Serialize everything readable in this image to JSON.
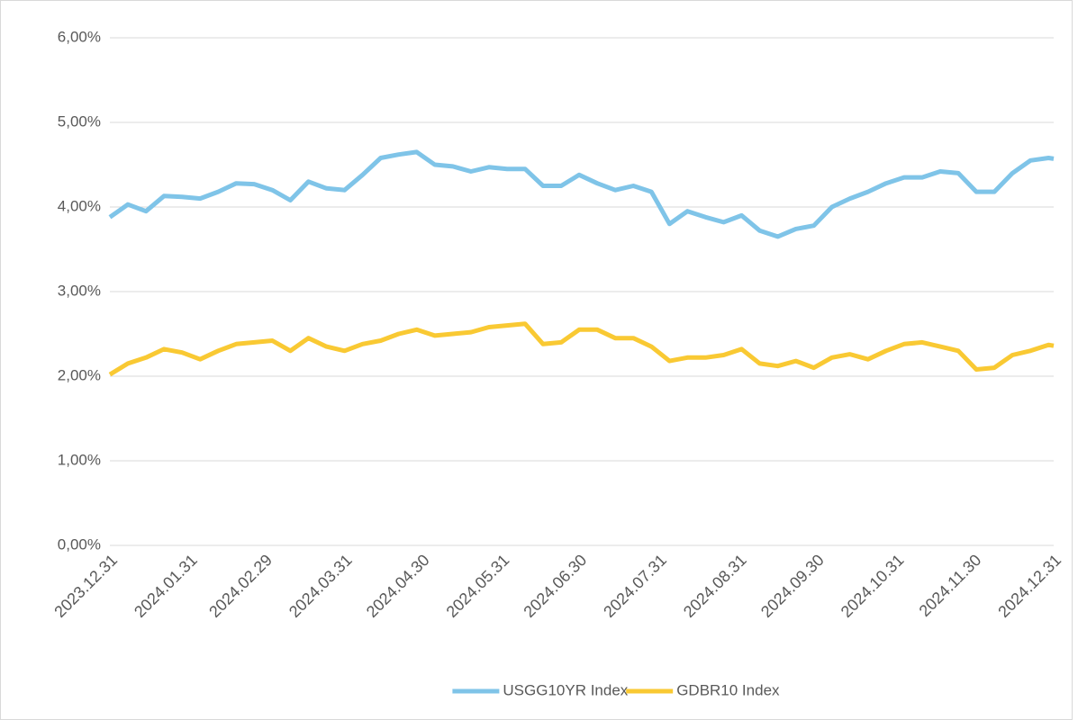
{
  "chart_data": {
    "type": "line",
    "x": [
      "2023.12.31",
      "2024.01.07",
      "2024.01.14",
      "2024.01.21",
      "2024.01.28",
      "2024.02.04",
      "2024.02.11",
      "2024.02.18",
      "2024.02.25",
      "2024.03.03",
      "2024.03.10",
      "2024.03.17",
      "2024.03.24",
      "2024.03.31",
      "2024.04.07",
      "2024.04.14",
      "2024.04.21",
      "2024.04.28",
      "2024.05.05",
      "2024.05.12",
      "2024.05.19",
      "2024.05.26",
      "2024.06.02",
      "2024.06.09",
      "2024.06.16",
      "2024.06.23",
      "2024.06.30",
      "2024.07.07",
      "2024.07.14",
      "2024.07.21",
      "2024.07.28",
      "2024.08.04",
      "2024.08.11",
      "2024.08.18",
      "2024.08.25",
      "2024.09.01",
      "2024.09.08",
      "2024.09.15",
      "2024.09.22",
      "2024.09.29",
      "2024.10.06",
      "2024.10.13",
      "2024.10.20",
      "2024.10.27",
      "2024.11.03",
      "2024.11.10",
      "2024.11.17",
      "2024.11.24",
      "2024.12.01",
      "2024.12.08",
      "2024.12.15",
      "2024.12.22",
      "2024.12.29",
      "2024.12.31"
    ],
    "series": [
      {
        "name": "USGG10YR Index",
        "color": "#7fc4e8",
        "values": [
          3.88,
          4.03,
          3.95,
          4.13,
          4.12,
          4.1,
          4.18,
          4.28,
          4.27,
          4.2,
          4.08,
          4.3,
          4.22,
          4.2,
          4.38,
          4.58,
          4.62,
          4.65,
          4.5,
          4.48,
          4.42,
          4.47,
          4.45,
          4.45,
          4.25,
          4.25,
          4.38,
          4.28,
          4.2,
          4.25,
          4.18,
          3.8,
          3.95,
          3.88,
          3.82,
          3.9,
          3.72,
          3.65,
          3.74,
          3.78,
          4.0,
          4.1,
          4.18,
          4.28,
          4.35,
          4.35,
          4.42,
          4.4,
          4.18,
          4.18,
          4.4,
          4.55,
          4.58,
          4.57
        ]
      },
      {
        "name": "GDBR10 Index",
        "color": "#f9c933",
        "values": [
          2.02,
          2.15,
          2.22,
          2.32,
          2.28,
          2.2,
          2.3,
          2.38,
          2.4,
          2.42,
          2.3,
          2.45,
          2.35,
          2.3,
          2.38,
          2.42,
          2.5,
          2.55,
          2.48,
          2.5,
          2.52,
          2.58,
          2.6,
          2.62,
          2.38,
          2.4,
          2.55,
          2.55,
          2.45,
          2.45,
          2.35,
          2.18,
          2.22,
          2.22,
          2.25,
          2.32,
          2.15,
          2.12,
          2.18,
          2.1,
          2.22,
          2.26,
          2.2,
          2.3,
          2.38,
          2.4,
          2.35,
          2.3,
          2.08,
          2.1,
          2.25,
          2.3,
          2.37,
          2.36
        ]
      }
    ],
    "xlim": [
      "2023.12.31",
      "2024.12.31"
    ],
    "xticks": [
      "2023.12.31",
      "2024.01.31",
      "2024.02.29",
      "2024.03.31",
      "2024.04.30",
      "2024.05.31",
      "2024.06.30",
      "2024.07.31",
      "2024.08.31",
      "2024.09.30",
      "2024.10.31",
      "2024.11.30",
      "2024.12.31"
    ],
    "ylim": [
      0,
      6
    ],
    "yticks": [
      {
        "value": 0,
        "label": "0,00%"
      },
      {
        "value": 1,
        "label": "1,00%"
      },
      {
        "value": 2,
        "label": "2,00%"
      },
      {
        "value": 3,
        "label": "3,00%"
      },
      {
        "value": 4,
        "label": "4,00%"
      },
      {
        "value": 5,
        "label": "5,00%"
      },
      {
        "value": 6,
        "label": "6,00%"
      }
    ],
    "grid": true,
    "legend": "bottom"
  }
}
